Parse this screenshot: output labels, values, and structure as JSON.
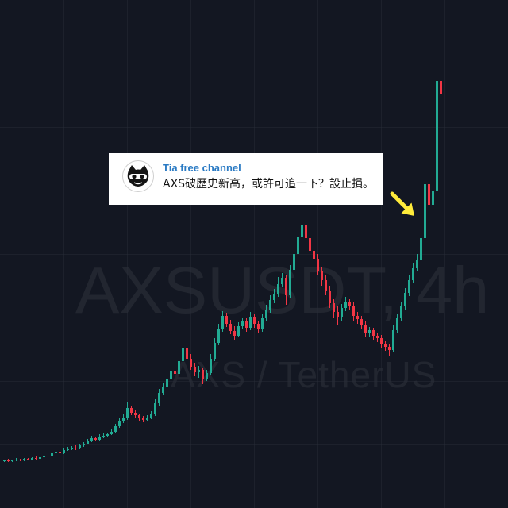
{
  "chart_data": {
    "type": "candlestick",
    "ylim": [
      0,
      64
    ],
    "grid": true,
    "watermark": {
      "symbol": "AXSUSDT, 4h",
      "pair": "AXS / TetherUS"
    },
    "last_price_line": {
      "value": 52.2,
      "color": "#f23645"
    },
    "colors": {
      "up": "#22ab94",
      "down": "#f23645",
      "background": "#131722",
      "grid": "rgba(42,46,57,0.45)"
    },
    "candles": [
      [
        5.9,
        6.1,
        5.8,
        6.0
      ],
      [
        6.0,
        6.2,
        5.8,
        5.9
      ],
      [
        5.9,
        6.1,
        5.8,
        6.0
      ],
      [
        6.0,
        6.3,
        5.9,
        6.1
      ],
      [
        6.1,
        6.2,
        5.9,
        6.0
      ],
      [
        6.0,
        6.3,
        5.9,
        6.2
      ],
      [
        6.2,
        6.3,
        6.0,
        6.1
      ],
      [
        6.1,
        6.4,
        6.0,
        6.3
      ],
      [
        6.3,
        6.5,
        6.1,
        6.2
      ],
      [
        6.2,
        6.5,
        6.1,
        6.4
      ],
      [
        6.4,
        6.7,
        6.3,
        6.5
      ],
      [
        6.5,
        6.8,
        6.4,
        6.6
      ],
      [
        6.6,
        7.1,
        6.5,
        6.9
      ],
      [
        6.9,
        7.3,
        6.8,
        7.1
      ],
      [
        7.1,
        7.2,
        6.7,
        6.9
      ],
      [
        6.9,
        7.5,
        6.8,
        7.3
      ],
      [
        7.3,
        7.7,
        7.2,
        7.4
      ],
      [
        7.4,
        7.8,
        7.3,
        7.6
      ],
      [
        7.6,
        7.9,
        7.3,
        7.5
      ],
      [
        7.5,
        8.1,
        7.4,
        7.9
      ],
      [
        7.9,
        8.3,
        7.7,
        8.1
      ],
      [
        8.1,
        8.7,
        8.0,
        8.4
      ],
      [
        8.4,
        9.1,
        8.3,
        8.8
      ],
      [
        8.8,
        9.0,
        8.4,
        8.6
      ],
      [
        8.6,
        9.3,
        8.5,
        9.0
      ],
      [
        9.0,
        9.4,
        8.8,
        9.1
      ],
      [
        9.1,
        9.5,
        8.9,
        9.3
      ],
      [
        9.3,
        10.0,
        9.2,
        9.6
      ],
      [
        9.6,
        10.6,
        9.5,
        10.3
      ],
      [
        10.3,
        11.3,
        10.1,
        10.9
      ],
      [
        10.9,
        11.8,
        10.7,
        11.3
      ],
      [
        11.3,
        13.3,
        11.1,
        12.6
      ],
      [
        12.6,
        12.9,
        11.7,
        12.0
      ],
      [
        12.0,
        12.3,
        11.4,
        11.7
      ],
      [
        11.7,
        11.9,
        11.0,
        11.3
      ],
      [
        11.3,
        11.6,
        10.8,
        11.1
      ],
      [
        11.1,
        11.7,
        10.9,
        11.4
      ],
      [
        11.4,
        12.2,
        11.2,
        11.8
      ],
      [
        11.8,
        13.7,
        11.6,
        13.2
      ],
      [
        13.2,
        15.0,
        12.9,
        14.5
      ],
      [
        14.5,
        15.8,
        14.2,
        15.2
      ],
      [
        15.2,
        17.0,
        14.9,
        16.3
      ],
      [
        16.3,
        18.0,
        16.0,
        17.2
      ],
      [
        17.2,
        17.7,
        16.4,
        16.9
      ],
      [
        16.9,
        19.3,
        16.6,
        18.5
      ],
      [
        18.5,
        21.5,
        18.2,
        20.2
      ],
      [
        20.2,
        20.7,
        18.4,
        18.8
      ],
      [
        18.8,
        19.4,
        17.4,
        17.8
      ],
      [
        17.8,
        18.3,
        16.6,
        17.1
      ],
      [
        17.1,
        17.9,
        16.4,
        17.4
      ],
      [
        17.4,
        17.7,
        15.6,
        16.3
      ],
      [
        16.3,
        17.4,
        16.0,
        17.0
      ],
      [
        17.0,
        19.4,
        16.7,
        18.8
      ],
      [
        18.8,
        21.4,
        18.5,
        20.8
      ],
      [
        20.8,
        23.2,
        20.5,
        22.5
      ],
      [
        22.5,
        24.8,
        22.2,
        24.2
      ],
      [
        24.2,
        24.6,
        22.8,
        23.2
      ],
      [
        23.2,
        23.7,
        21.9,
        22.3
      ],
      [
        22.3,
        22.9,
        21.2,
        21.7
      ],
      [
        21.7,
        23.4,
        21.5,
        22.9
      ],
      [
        22.9,
        24.0,
        22.6,
        23.5
      ],
      [
        23.5,
        23.9,
        22.2,
        22.7
      ],
      [
        22.7,
        24.7,
        22.4,
        24.1
      ],
      [
        24.1,
        24.4,
        22.7,
        23.2
      ],
      [
        23.2,
        23.6,
        22.0,
        22.5
      ],
      [
        22.5,
        24.4,
        22.2,
        23.9
      ],
      [
        23.9,
        25.6,
        23.6,
        25.0
      ],
      [
        25.0,
        26.8,
        24.6,
        26.2
      ],
      [
        26.2,
        27.6,
        25.8,
        26.9
      ],
      [
        26.9,
        29.1,
        26.6,
        28.2
      ],
      [
        28.2,
        29.6,
        27.8,
        29.0
      ],
      [
        29.0,
        29.4,
        25.6,
        26.8
      ],
      [
        26.8,
        30.6,
        26.4,
        30.0
      ],
      [
        30.0,
        32.8,
        29.6,
        32.0
      ],
      [
        32.0,
        35.0,
        31.6,
        34.2
      ],
      [
        34.2,
        37.2,
        33.8,
        35.6
      ],
      [
        35.6,
        36.2,
        33.4,
        34.0
      ],
      [
        34.0,
        34.6,
        31.8,
        32.4
      ],
      [
        32.4,
        33.2,
        30.6,
        31.4
      ],
      [
        31.4,
        32.0,
        29.3,
        29.9
      ],
      [
        29.9,
        30.4,
        28.0,
        28.7
      ],
      [
        28.7,
        29.3,
        26.8,
        27.4
      ],
      [
        27.4,
        28.0,
        25.2,
        25.8
      ],
      [
        25.8,
        26.3,
        24.0,
        24.7
      ],
      [
        24.7,
        25.4,
        23.0,
        24.1
      ],
      [
        24.1,
        25.7,
        23.6,
        25.2
      ],
      [
        25.2,
        26.6,
        24.8,
        26.0
      ],
      [
        26.0,
        26.3,
        24.9,
        25.5
      ],
      [
        25.5,
        25.9,
        23.6,
        24.2
      ],
      [
        24.2,
        24.7,
        23.2,
        23.8
      ],
      [
        23.8,
        24.2,
        22.6,
        23.1
      ],
      [
        23.1,
        23.6,
        21.6,
        22.1
      ],
      [
        22.1,
        22.8,
        21.6,
        22.4
      ],
      [
        22.4,
        22.7,
        21.2,
        21.7
      ],
      [
        21.7,
        22.1,
        20.9,
        21.4
      ],
      [
        21.4,
        21.8,
        20.2,
        20.7
      ],
      [
        20.7,
        21.1,
        19.8,
        20.3
      ],
      [
        20.3,
        20.7,
        19.2,
        19.9
      ],
      [
        19.9,
        23.0,
        19.6,
        22.4
      ],
      [
        22.4,
        24.4,
        22.0,
        23.9
      ],
      [
        23.9,
        26.0,
        23.6,
        25.4
      ],
      [
        25.4,
        27.7,
        25.0,
        27.1
      ],
      [
        27.1,
        29.4,
        26.7,
        28.7
      ],
      [
        28.7,
        30.9,
        28.3,
        30.2
      ],
      [
        30.2,
        32.0,
        29.8,
        31.3
      ],
      [
        31.3,
        34.6,
        31.0,
        34.0
      ],
      [
        34.0,
        41.4,
        33.6,
        40.8
      ],
      [
        40.8,
        41.1,
        37.6,
        38.2
      ],
      [
        38.2,
        40.4,
        37.0,
        40.0
      ],
      [
        40.0,
        61.2,
        39.6,
        53.8
      ],
      [
        53.8,
        55.2,
        51.4,
        52.2
      ]
    ]
  },
  "message_card": {
    "channel_name": "Tia free channel",
    "text": "AXS破歷史新高，或許可追一下？設止損。",
    "name_color": "#2b7bc4",
    "avatar_icon": "channel-avatar-icon"
  },
  "annotation": {
    "icon": "arrow-down-right-icon",
    "color": "#ffeb3b"
  }
}
